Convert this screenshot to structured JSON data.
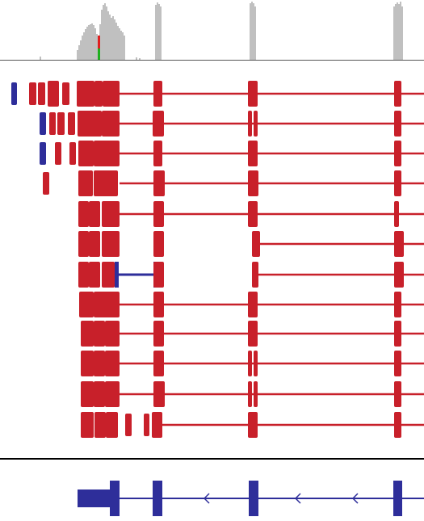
{
  "view": {
    "background": "#ffffff",
    "coverage_color": "#c0c0c0",
    "read_forward_color": "#c8202a",
    "read_reverse_color": "#2e2e9a",
    "gene_color": "#2e2e9a",
    "mismatch_colors": [
      "#e02020",
      "#20b020"
    ],
    "divider_color": "#000000"
  },
  "gene_track": {
    "strand": "minus",
    "strand_arrow_glyph": "<"
  }
}
